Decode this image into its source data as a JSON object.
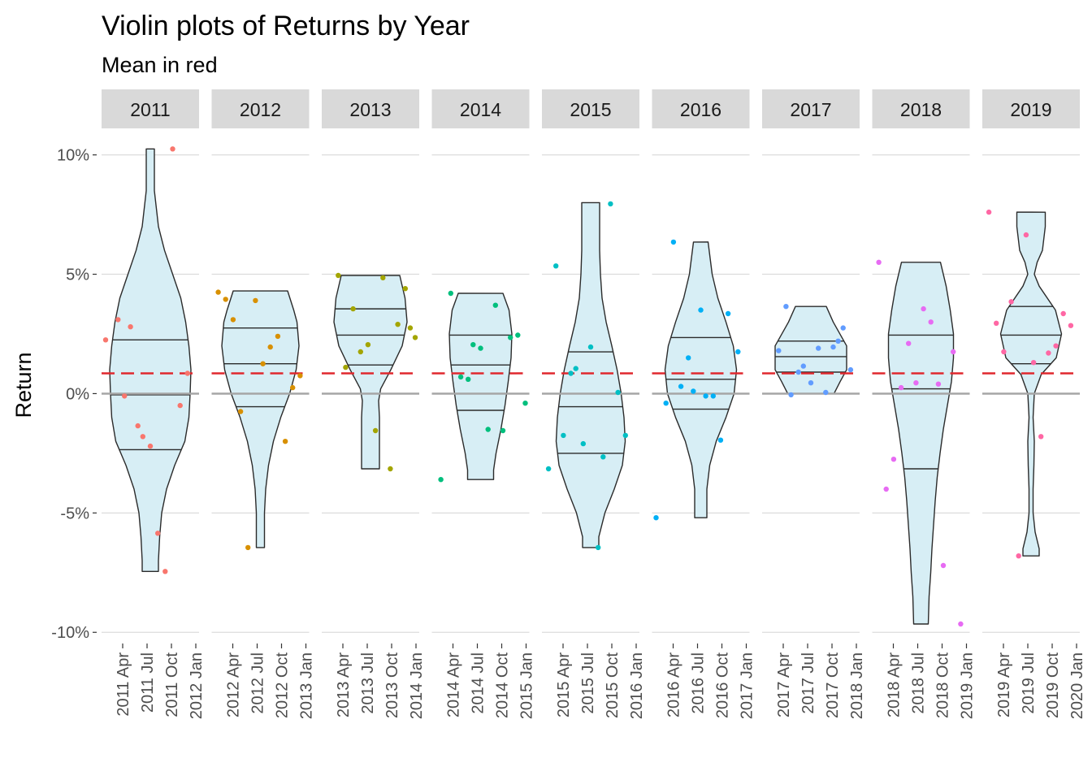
{
  "chart_data": {
    "type": "violin",
    "title": "Violin plots of Returns by Year",
    "subtitle": "Mean in red",
    "ylabel": "Return",
    "ylim": [
      -10.4,
      10.6
    ],
    "y_ticks": [
      10,
      5,
      0,
      -5,
      -10
    ],
    "y_tick_labels": [
      "10%",
      "5%",
      "0%",
      "-5%",
      "-10%"
    ],
    "mean_line": 0.85,
    "mean_line_color": "#e0282e",
    "zero_line_color": "#a6a6a6",
    "violin_fill": "#d7eef5",
    "grid": true,
    "legend": "none",
    "panels": [
      {
        "strip": "2011",
        "color": "#f8766d",
        "x_ticks": [
          "2011 Apr",
          "2011 Jul",
          "2011 Oct",
          "2012 Jan"
        ],
        "quantiles": [
          -2.35,
          -0.05,
          2.25
        ],
        "violin": [
          [
            10.25,
            0.1
          ],
          [
            8.5,
            0.1
          ],
          [
            7.0,
            0.2
          ],
          [
            6.0,
            0.35
          ],
          [
            5.0,
            0.55
          ],
          [
            4.0,
            0.75
          ],
          [
            3.0,
            0.87
          ],
          [
            2.0,
            0.95
          ],
          [
            1.0,
            1.0
          ],
          [
            0,
            0.98
          ],
          [
            -1.0,
            0.95
          ],
          [
            -2.0,
            0.85
          ],
          [
            -3.0,
            0.6
          ],
          [
            -4.0,
            0.4
          ],
          [
            -5.0,
            0.28
          ],
          [
            -6.0,
            0.23
          ],
          [
            -7.0,
            0.2
          ],
          [
            -7.45,
            0.2
          ]
        ],
        "points": [
          [
            -0.2,
            2.25
          ],
          [
            0.05,
            3.1
          ],
          [
            0.18,
            -0.1
          ],
          [
            0.3,
            2.8
          ],
          [
            0.45,
            -1.35
          ],
          [
            0.55,
            -1.8
          ],
          [
            0.7,
            -2.2
          ],
          [
            0.85,
            -5.85
          ],
          [
            1.0,
            -7.45
          ],
          [
            1.15,
            10.25
          ],
          [
            1.3,
            -0.5
          ],
          [
            1.45,
            0.85
          ]
        ]
      },
      {
        "strip": "2012",
        "color": "#d89000",
        "x_ticks": [
          "2012 Apr",
          "2012 Jul",
          "2012 Oct",
          "2013 Jan"
        ],
        "quantiles": [
          -0.55,
          1.25,
          2.75
        ],
        "violin": [
          [
            4.3,
            0.67
          ],
          [
            3.5,
            0.82
          ],
          [
            3.0,
            0.9
          ],
          [
            2.0,
            0.95
          ],
          [
            1.0,
            0.88
          ],
          [
            0,
            0.72
          ],
          [
            -1.0,
            0.5
          ],
          [
            -2.0,
            0.32
          ],
          [
            -3.0,
            0.2
          ],
          [
            -4.0,
            0.13
          ],
          [
            -5.0,
            0.1
          ],
          [
            -6.0,
            0.1
          ],
          [
            -6.45,
            0.1
          ]
        ],
        "points": [
          [
            -0.15,
            4.25
          ],
          [
            0.0,
            3.95
          ],
          [
            0.15,
            3.1
          ],
          [
            0.3,
            -0.75
          ],
          [
            0.45,
            -6.45
          ],
          [
            0.6,
            3.9
          ],
          [
            0.75,
            1.25
          ],
          [
            0.9,
            1.95
          ],
          [
            1.05,
            2.4
          ],
          [
            1.2,
            -2.0
          ],
          [
            1.35,
            0.25
          ],
          [
            1.5,
            0.75
          ]
        ]
      },
      {
        "strip": "2013",
        "color": "#a3a500",
        "x_ticks": [
          "2013 Apr",
          "2013 Jul",
          "2013 Oct",
          "2014 Jan"
        ],
        "quantiles": [
          1.2,
          2.45,
          3.55
        ],
        "violin": [
          [
            4.95,
            0.72
          ],
          [
            4.0,
            0.85
          ],
          [
            3.0,
            0.9
          ],
          [
            2.0,
            0.78
          ],
          [
            1.0,
            0.5
          ],
          [
            0.2,
            0.25
          ],
          [
            -0.3,
            0.2
          ],
          [
            -1.0,
            0.22
          ],
          [
            -2.0,
            0.22
          ],
          [
            -3.15,
            0.22
          ]
        ],
        "points": [
          [
            0.05,
            4.95
          ],
          [
            0.2,
            1.1
          ],
          [
            0.35,
            3.55
          ],
          [
            0.5,
            1.75
          ],
          [
            0.65,
            2.05
          ],
          [
            0.8,
            -1.55
          ],
          [
            0.95,
            4.85
          ],
          [
            1.1,
            -3.15
          ],
          [
            1.25,
            2.9
          ],
          [
            1.4,
            4.4
          ],
          [
            1.5,
            2.75
          ],
          [
            1.6,
            2.35
          ]
        ]
      },
      {
        "strip": "2014",
        "color": "#00bf7d",
        "x_ticks": [
          "2014 Apr",
          "2014 Jul",
          "2014 Oct",
          "2015 Jan"
        ],
        "quantiles": [
          -0.7,
          1.2,
          2.45
        ],
        "violin": [
          [
            4.2,
            0.55
          ],
          [
            3.5,
            0.7
          ],
          [
            2.5,
            0.77
          ],
          [
            1.5,
            0.75
          ],
          [
            0.5,
            0.68
          ],
          [
            -0.5,
            0.6
          ],
          [
            -1.5,
            0.5
          ],
          [
            -2.5,
            0.38
          ],
          [
            -3.2,
            0.32
          ],
          [
            -3.6,
            0.32
          ]
        ],
        "points": [
          [
            -0.1,
            -3.6
          ],
          [
            0.1,
            4.2
          ],
          [
            0.3,
            0.7
          ],
          [
            0.45,
            0.6
          ],
          [
            0.55,
            2.05
          ],
          [
            0.7,
            1.9
          ],
          [
            0.85,
            -1.5
          ],
          [
            1.0,
            3.7
          ],
          [
            1.15,
            -1.55
          ],
          [
            1.3,
            2.35
          ],
          [
            1.45,
            2.45
          ],
          [
            1.6,
            -0.4
          ]
        ]
      },
      {
        "strip": "2015",
        "color": "#00bfc4",
        "x_ticks": [
          "2015 Apr",
          "2015 Jul",
          "2015 Oct",
          "2016 Jan"
        ],
        "quantiles": [
          -2.5,
          -0.55,
          1.75
        ],
        "violin": [
          [
            8.0,
            0.22
          ],
          [
            6.0,
            0.22
          ],
          [
            5.0,
            0.24
          ],
          [
            4.0,
            0.28
          ],
          [
            3.0,
            0.38
          ],
          [
            2.0,
            0.52
          ],
          [
            1.0,
            0.65
          ],
          [
            0,
            0.75
          ],
          [
            -1.0,
            0.82
          ],
          [
            -2.0,
            0.85
          ],
          [
            -3.0,
            0.78
          ],
          [
            -4.0,
            0.58
          ],
          [
            -5.0,
            0.35
          ],
          [
            -6.0,
            0.2
          ],
          [
            -6.45,
            0.2
          ]
        ],
        "points": [
          [
            -0.15,
            -3.15
          ],
          [
            0.0,
            5.35
          ],
          [
            0.15,
            -1.75
          ],
          [
            0.3,
            0.85
          ],
          [
            0.4,
            1.05
          ],
          [
            0.55,
            -2.1
          ],
          [
            0.7,
            1.95
          ],
          [
            0.85,
            -6.45
          ],
          [
            0.95,
            -2.65
          ],
          [
            1.1,
            7.95
          ],
          [
            1.25,
            0.05
          ],
          [
            1.4,
            -1.75
          ]
        ]
      },
      {
        "strip": "2016",
        "color": "#00b0f6",
        "x_ticks": [
          "2016 Apr",
          "2016 Jul",
          "2016 Oct",
          "2017 Jan"
        ],
        "quantiles": [
          -0.65,
          0.6,
          2.35
        ],
        "violin": [
          [
            6.35,
            0.18
          ],
          [
            5.0,
            0.28
          ],
          [
            4.0,
            0.42
          ],
          [
            3.0,
            0.62
          ],
          [
            2.0,
            0.8
          ],
          [
            1.0,
            0.88
          ],
          [
            0,
            0.82
          ],
          [
            -1.0,
            0.62
          ],
          [
            -2.0,
            0.38
          ],
          [
            -3.0,
            0.22
          ],
          [
            -4.0,
            0.15
          ],
          [
            -5.2,
            0.15
          ]
        ],
        "points": [
          [
            -0.2,
            -5.2
          ],
          [
            0.0,
            -0.4
          ],
          [
            0.15,
            6.35
          ],
          [
            0.3,
            0.3
          ],
          [
            0.45,
            1.5
          ],
          [
            0.55,
            0.1
          ],
          [
            0.7,
            3.5
          ],
          [
            0.8,
            -0.1
          ],
          [
            0.95,
            -0.1
          ],
          [
            1.1,
            -1.95
          ],
          [
            1.25,
            3.35
          ],
          [
            1.45,
            1.75
          ]
        ]
      },
      {
        "strip": "2017",
        "color": "#619cff",
        "x_ticks": [
          "2017 Apr",
          "2017 Jul",
          "2017 Oct",
          "2018 Jan"
        ],
        "quantiles": [
          0.9,
          1.55,
          2.2
        ],
        "violin": [
          [
            3.65,
            0.38
          ],
          [
            3.0,
            0.55
          ],
          [
            2.0,
            0.88
          ],
          [
            1.0,
            0.88
          ],
          [
            0.5,
            0.72
          ],
          [
            0,
            0.57
          ]
        ],
        "points": [
          [
            0.05,
            1.8
          ],
          [
            0.2,
            3.65
          ],
          [
            0.3,
            -0.05
          ],
          [
            0.45,
            0.9
          ],
          [
            0.55,
            1.15
          ],
          [
            0.7,
            0.45
          ],
          [
            0.85,
            1.9
          ],
          [
            1.0,
            0.05
          ],
          [
            1.15,
            1.95
          ],
          [
            1.25,
            2.2
          ],
          [
            1.35,
            2.75
          ],
          [
            1.5,
            1.0
          ]
        ]
      },
      {
        "strip": "2018",
        "color": "#e76bf3",
        "x_ticks": [
          "2018 Apr",
          "2018 Jul",
          "2018 Oct",
          "2019 Jan"
        ],
        "quantiles": [
          -3.15,
          0.2,
          2.45
        ],
        "violin": [
          [
            5.5,
            0.48
          ],
          [
            4.5,
            0.62
          ],
          [
            3.5,
            0.72
          ],
          [
            2.5,
            0.8
          ],
          [
            1.5,
            0.8
          ],
          [
            0.5,
            0.75
          ],
          [
            -0.5,
            0.65
          ],
          [
            -1.5,
            0.55
          ],
          [
            -2.5,
            0.47
          ],
          [
            -3.5,
            0.4
          ],
          [
            -4.5,
            0.35
          ],
          [
            -5.5,
            0.31
          ],
          [
            -6.5,
            0.27
          ],
          [
            -7.5,
            0.24
          ],
          [
            -8.5,
            0.2
          ],
          [
            -9.65,
            0.18
          ]
        ],
        "points": [
          [
            -0.15,
            5.5
          ],
          [
            0.0,
            -4.0
          ],
          [
            0.15,
            -2.75
          ],
          [
            0.3,
            0.25
          ],
          [
            0.45,
            2.1
          ],
          [
            0.6,
            0.45
          ],
          [
            0.75,
            3.55
          ],
          [
            0.9,
            3.0
          ],
          [
            1.05,
            0.4
          ],
          [
            1.15,
            -7.2
          ],
          [
            1.35,
            1.75
          ],
          [
            1.5,
            -9.65
          ]
        ]
      },
      {
        "strip": "2019",
        "color": "#ff67a4",
        "x_ticks": [
          "2019 Apr",
          "2019 Jul",
          "2019 Oct",
          "2020 Jan"
        ],
        "quantiles": [
          1.25,
          2.45,
          3.65
        ],
        "violin": [
          [
            7.6,
            0.35
          ],
          [
            7.0,
            0.35
          ],
          [
            6.0,
            0.28
          ],
          [
            5.5,
            0.15
          ],
          [
            5.0,
            0.08
          ],
          [
            4.5,
            0.2
          ],
          [
            3.5,
            0.6
          ],
          [
            2.5,
            0.75
          ],
          [
            1.5,
            0.62
          ],
          [
            0.8,
            0.25
          ],
          [
            0,
            0.08
          ],
          [
            -1.0,
            0.05
          ],
          [
            -2.0,
            0.08
          ],
          [
            -3.0,
            0.07
          ],
          [
            -4.0,
            0.05
          ],
          [
            -5.0,
            0.05
          ],
          [
            -5.8,
            0.1
          ],
          [
            -6.5,
            0.2
          ],
          [
            -6.8,
            0.2
          ]
        ],
        "points": [
          [
            -0.15,
            7.6
          ],
          [
            0.0,
            2.95
          ],
          [
            0.15,
            1.75
          ],
          [
            0.3,
            3.85
          ],
          [
            0.45,
            -6.8
          ],
          [
            0.6,
            6.65
          ],
          [
            0.75,
            1.3
          ],
          [
            0.9,
            -1.8
          ],
          [
            1.05,
            1.7
          ],
          [
            1.2,
            2.0
          ],
          [
            1.35,
            3.35
          ],
          [
            1.5,
            2.85
          ]
        ]
      }
    ]
  }
}
